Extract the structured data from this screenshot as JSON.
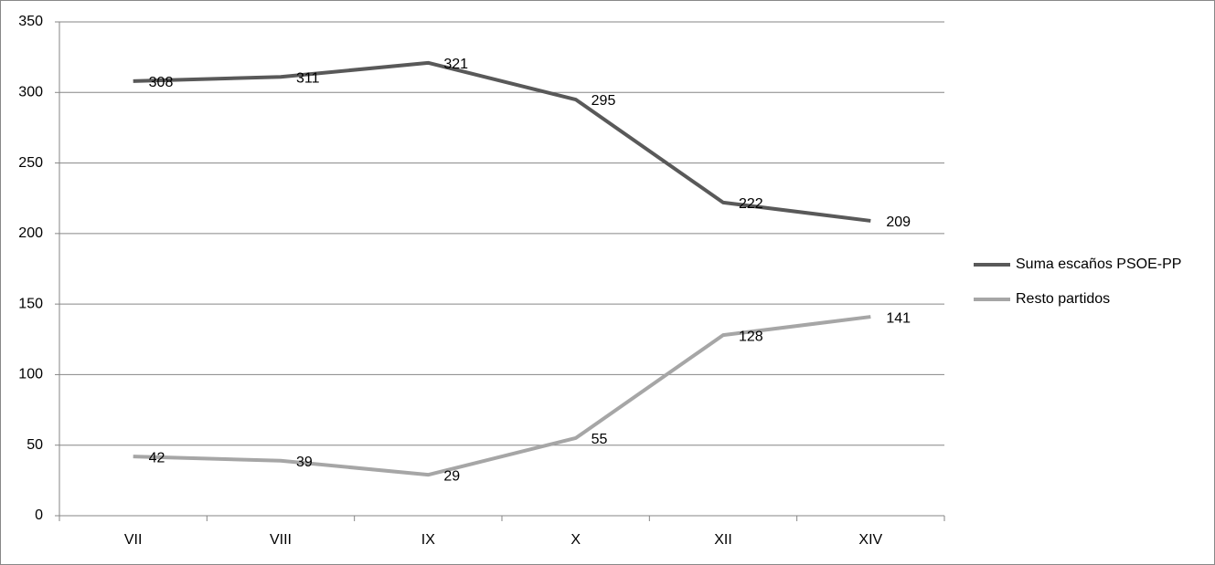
{
  "chart_data": {
    "type": "line",
    "categories": [
      "VII",
      "VIII",
      "IX",
      "X",
      "XII",
      "XIV"
    ],
    "series": [
      {
        "name": "Suma escaños PSOE-PP",
        "color": "#595959",
        "values": [
          308,
          311,
          321,
          295,
          222,
          209
        ]
      },
      {
        "name": "Resto partidos",
        "color": "#a6a6a6",
        "values": [
          42,
          39,
          29,
          55,
          128,
          141
        ]
      }
    ],
    "ylim": [
      0,
      350
    ],
    "yticks": [
      0,
      50,
      100,
      150,
      200,
      250,
      300,
      350
    ],
    "grid": true,
    "legend": "right"
  }
}
